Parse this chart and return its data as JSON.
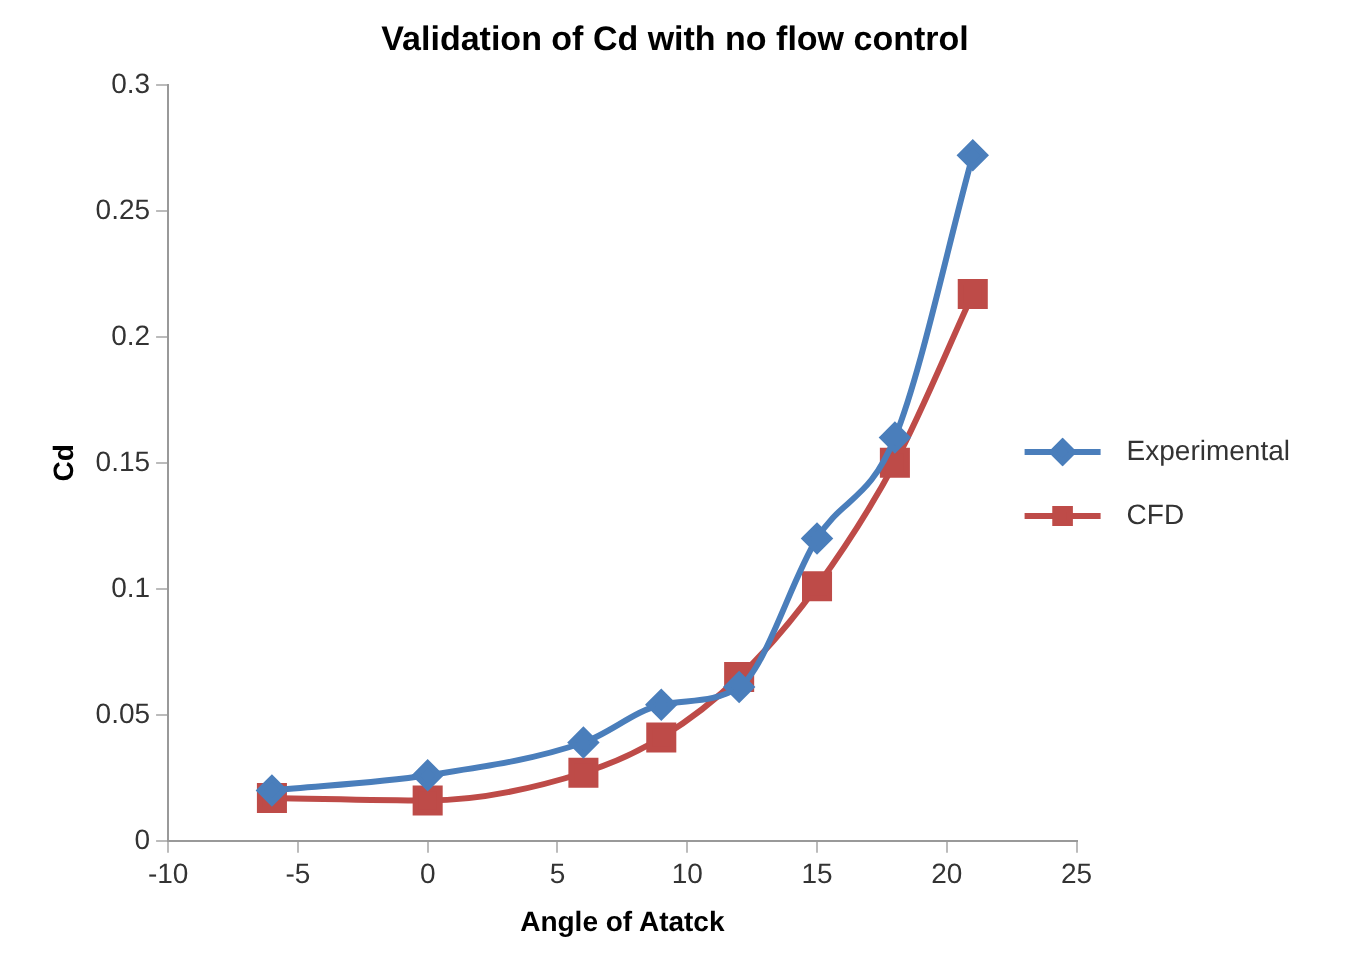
{
  "chart_data": {
    "type": "line",
    "title": "Validation of Cd with no flow control",
    "xlabel": "Angle of Atatck",
    "ylabel": "Cd",
    "x": [
      -6,
      0,
      6,
      9,
      12,
      15,
      18,
      21
    ],
    "series": [
      {
        "name": "Experimental",
        "color": "#4a7ebb",
        "marker": "diamond",
        "values": [
          0.02,
          0.026,
          0.039,
          0.054,
          0.061,
          0.12,
          0.16,
          0.272
        ]
      },
      {
        "name": "CFD",
        "color": "#be4b48",
        "marker": "square",
        "values": [
          0.017,
          0.016,
          0.027,
          0.041,
          0.065,
          0.101,
          0.15,
          0.217
        ]
      }
    ],
    "xlim": [
      -10,
      25
    ],
    "xticks": [
      -10,
      -5,
      0,
      5,
      10,
      15,
      20,
      25
    ],
    "ylim": [
      0,
      0.3
    ],
    "yticks": [
      0,
      0.05,
      0.1,
      0.15,
      0.2,
      0.25,
      0.3
    ],
    "grid": false,
    "legend": "right"
  }
}
